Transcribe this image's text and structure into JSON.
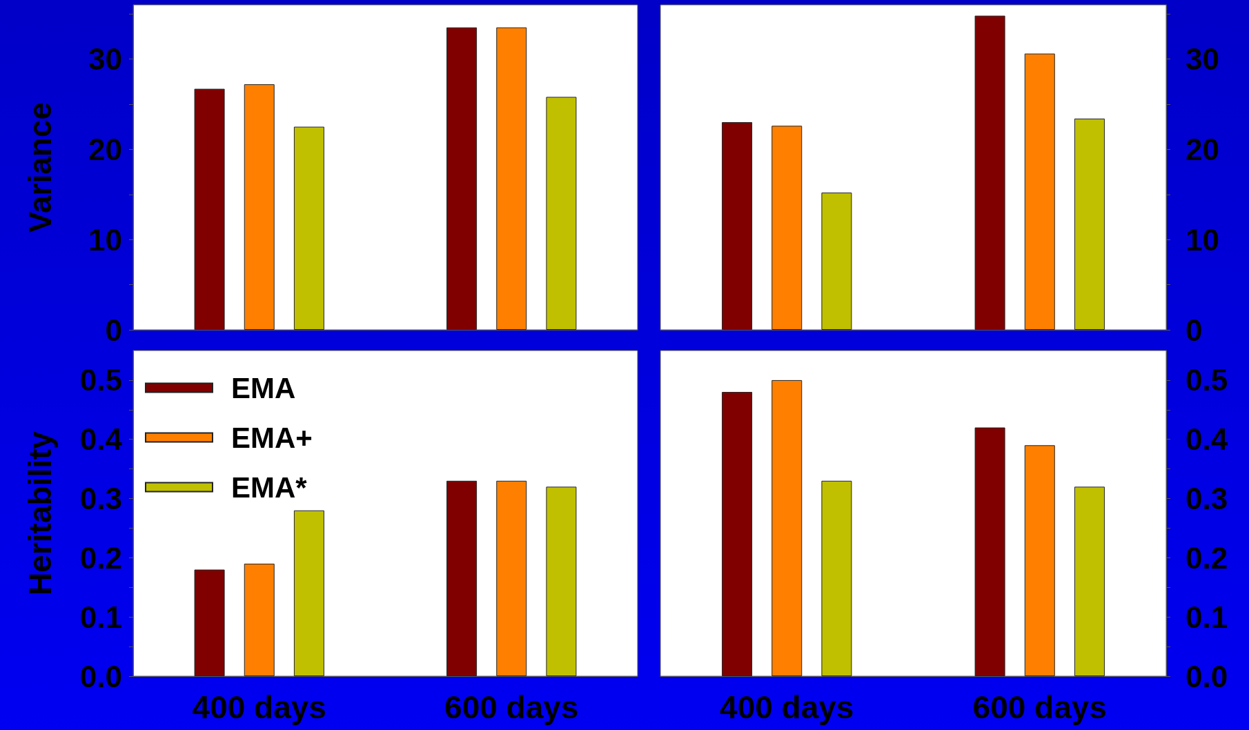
{
  "chart_data": [
    {
      "type": "bar",
      "ylabel": "Variance",
      "categories": [
        null,
        null
      ],
      "ylim": [
        0,
        36
      ],
      "yticks": [
        0,
        {
          "value": 5,
          "label": null
        },
        10,
        {
          "value": 15,
          "label": null
        },
        20,
        {
          "value": 25,
          "label": null
        },
        30,
        {
          "value": 35,
          "label": null
        }
      ],
      "tick_labels": "y",
      "grid": false,
      "legend": false,
      "series": [
        {
          "color": "#800000",
          "values": [
            26.7,
            33.5
          ]
        },
        {
          "color": "#ff8000",
          "values": [
            27.2,
            33.5
          ]
        },
        {
          "color": "#c0c000",
          "values": [
            22.5,
            25.8
          ]
        }
      ]
    },
    {
      "type": "bar",
      "categories": [
        null,
        null
      ],
      "ylim": [
        0,
        36
      ],
      "yticks": [
        0,
        {
          "value": 5,
          "label": null
        },
        10,
        {
          "value": 15,
          "label": null
        },
        20,
        {
          "value": 25,
          "label": null
        },
        30,
        {
          "value": 35,
          "label": null
        }
      ],
      "tick_labels": "y",
      "grid": false,
      "legend": false,
      "series": [
        {
          "color": "#800000",
          "values": [
            23.0,
            34.8
          ]
        },
        {
          "color": "#ff8000",
          "values": [
            22.6,
            30.6
          ]
        },
        {
          "color": "#c0c000",
          "values": [
            15.2,
            23.4
          ]
        }
      ]
    },
    {
      "type": "bar",
      "ylabel": "Heritability",
      "categories": [
        "400 days",
        "600 days"
      ],
      "ylim": [
        0,
        0.55
      ],
      "yticks": [
        {
          "value": 0,
          "label": "0.0"
        },
        {
          "value": 0.05,
          "label": null
        },
        0.1,
        {
          "value": 0.15,
          "label": null
        },
        0.2,
        {
          "value": 0.25,
          "label": null
        },
        0.3,
        {
          "value": 0.35,
          "label": null
        },
        0.4,
        {
          "value": 0.45,
          "label": null
        },
        0.5
      ],
      "grid": false,
      "legend": "top left",
      "series": [
        {
          "name": "EMA",
          "color": "#800000",
          "values": [
            0.18,
            0.33
          ]
        },
        {
          "name": "EMA+",
          "color": "#ff8000",
          "values": [
            0.19,
            0.33
          ]
        },
        {
          "name": "EMA*",
          "color": "#c0c000",
          "values": [
            0.28,
            0.32
          ]
        }
      ]
    },
    {
      "type": "bar",
      "categories": [
        "400 days",
        "600 days"
      ],
      "ylim": [
        0,
        0.55
      ],
      "yticks": [
        {
          "value": 0,
          "label": "0.0"
        },
        {
          "value": 0.05,
          "label": null
        },
        0.1,
        {
          "value": 0.15,
          "label": null
        },
        0.2,
        {
          "value": 0.25,
          "label": null
        },
        0.3,
        {
          "value": 0.35,
          "label": null
        },
        0.4,
        {
          "value": 0.45,
          "label": null
        },
        0.5
      ],
      "grid": false,
      "legend": false,
      "series": [
        {
          "color": "#800000",
          "values": [
            0.48,
            0.42
          ]
        },
        {
          "color": "#ff8000",
          "values": [
            0.5,
            0.39
          ]
        },
        {
          "color": "#c0c000",
          "values": [
            0.33,
            0.32
          ]
        }
      ]
    }
  ]
}
